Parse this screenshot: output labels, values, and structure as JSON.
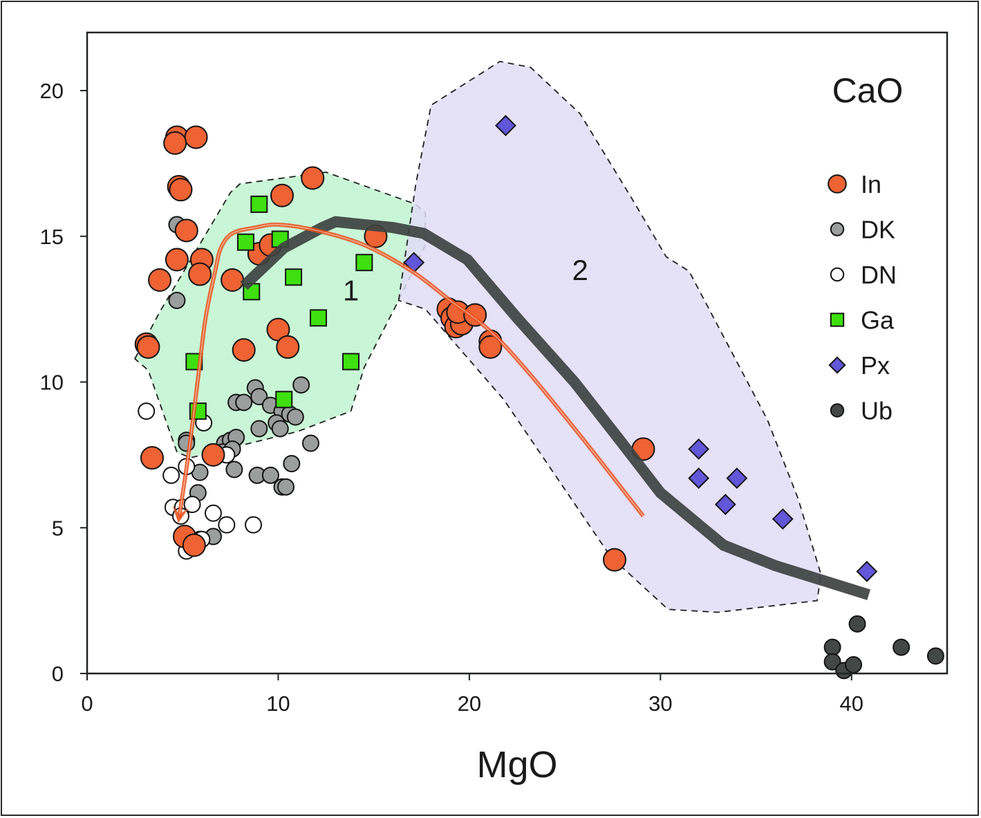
{
  "chart_data": {
    "type": "scatter",
    "title": "CaO",
    "xlabel": "MgO",
    "ylabel": "",
    "xlim": [
      0,
      45
    ],
    "ylim": [
      0,
      22
    ],
    "xticks": [
      0,
      10,
      20,
      30,
      40
    ],
    "yticks": [
      0,
      5,
      10,
      15,
      20
    ],
    "grid": false,
    "legend_position": "top-right",
    "colors": {
      "In": "#ee6233",
      "DK": "#9a9e9d",
      "DN": "#ffffff",
      "Ga": "#3ee00f",
      "Px": "#6256d9",
      "Ub": "#434746",
      "region1_fill": "#bff4cf",
      "region2_fill": "#e0dcf6",
      "trend_gray": "#3d4241",
      "trend_orange": "#ea5420"
    },
    "series": [
      {
        "name": "In",
        "marker": "circle",
        "points": [
          [
            4.7,
            18.4
          ],
          [
            5.7,
            18.4
          ],
          [
            4.6,
            18.2
          ],
          [
            4.8,
            16.7
          ],
          [
            4.9,
            16.6
          ],
          [
            5.2,
            15.2
          ],
          [
            4.7,
            14.2
          ],
          [
            6.0,
            14.2
          ],
          [
            5.9,
            13.7
          ],
          [
            3.8,
            13.5
          ],
          [
            7.6,
            13.5
          ],
          [
            3.1,
            11.3
          ],
          [
            3.2,
            11.2
          ],
          [
            10.2,
            16.4
          ],
          [
            11.8,
            17.0
          ],
          [
            9.0,
            14.4
          ],
          [
            9.6,
            14.7
          ],
          [
            15.1,
            15.0
          ],
          [
            8.2,
            11.1
          ],
          [
            10.0,
            11.8
          ],
          [
            10.5,
            11.2
          ],
          [
            3.4,
            7.4
          ],
          [
            6.6,
            7.5
          ],
          [
            5.1,
            4.7
          ],
          [
            5.6,
            4.4
          ],
          [
            18.9,
            12.5
          ],
          [
            19.1,
            12.2
          ],
          [
            19.3,
            11.9
          ],
          [
            19.6,
            12.0
          ],
          [
            19.4,
            12.4
          ],
          [
            20.3,
            12.3
          ],
          [
            21.1,
            11.4
          ],
          [
            21.1,
            11.2
          ],
          [
            29.1,
            7.7
          ],
          [
            27.6,
            3.9
          ]
        ]
      },
      {
        "name": "DK",
        "marker": "circle",
        "points": [
          [
            4.7,
            15.4
          ],
          [
            4.7,
            12.8
          ],
          [
            8.8,
            9.8
          ],
          [
            7.8,
            9.3
          ],
          [
            8.2,
            9.3
          ],
          [
            9.0,
            9.5
          ],
          [
            9.6,
            9.2
          ],
          [
            10.2,
            9.0
          ],
          [
            10.6,
            8.9
          ],
          [
            11.2,
            9.9
          ],
          [
            10.9,
            8.8
          ],
          [
            9.0,
            8.4
          ],
          [
            9.9,
            8.6
          ],
          [
            10.1,
            8.4
          ],
          [
            5.2,
            8.0
          ],
          [
            5.2,
            7.9
          ],
          [
            7.2,
            7.9
          ],
          [
            7.5,
            8.0
          ],
          [
            7.8,
            8.1
          ],
          [
            7.1,
            7.6
          ],
          [
            7.6,
            7.7
          ],
          [
            7.7,
            7.0
          ],
          [
            11.7,
            7.9
          ],
          [
            5.9,
            6.9
          ],
          [
            8.9,
            6.8
          ],
          [
            9.6,
            6.8
          ],
          [
            10.2,
            6.4
          ],
          [
            10.4,
            6.4
          ],
          [
            10.7,
            7.2
          ],
          [
            5.8,
            6.2
          ],
          [
            6.6,
            4.7
          ],
          [
            5.9,
            4.6
          ]
        ]
      },
      {
        "name": "DN",
        "marker": "circle",
        "points": [
          [
            3.1,
            9.0
          ],
          [
            6.1,
            8.6
          ],
          [
            5.2,
            7.1
          ],
          [
            4.4,
            6.8
          ],
          [
            7.3,
            7.5
          ],
          [
            4.5,
            5.7
          ],
          [
            5.0,
            5.7
          ],
          [
            5.5,
            5.8
          ],
          [
            4.9,
            5.4
          ],
          [
            6.6,
            5.5
          ],
          [
            7.3,
            5.1
          ],
          [
            8.7,
            5.1
          ],
          [
            6.0,
            4.6
          ],
          [
            5.2,
            4.2
          ]
        ]
      },
      {
        "name": "Ga",
        "marker": "square",
        "points": [
          [
            9.0,
            16.1
          ],
          [
            8.3,
            14.8
          ],
          [
            10.1,
            14.9
          ],
          [
            8.6,
            13.1
          ],
          [
            10.8,
            13.6
          ],
          [
            14.5,
            14.1
          ],
          [
            12.1,
            12.2
          ],
          [
            13.8,
            10.7
          ],
          [
            5.6,
            10.7
          ],
          [
            5.8,
            9.0
          ],
          [
            10.3,
            9.4
          ]
        ]
      },
      {
        "name": "Px",
        "marker": "diamond",
        "points": [
          [
            21.9,
            18.8
          ],
          [
            17.1,
            14.1
          ],
          [
            32.0,
            7.7
          ],
          [
            32.0,
            6.7
          ],
          [
            34.0,
            6.7
          ],
          [
            33.4,
            5.8
          ],
          [
            36.4,
            5.3
          ],
          [
            40.8,
            3.5
          ]
        ]
      },
      {
        "name": "Ub",
        "marker": "circle",
        "points": [
          [
            40.3,
            1.7
          ],
          [
            39.0,
            0.9
          ],
          [
            39.0,
            0.4
          ],
          [
            39.6,
            0.1
          ],
          [
            40.1,
            0.3
          ],
          [
            42.6,
            0.9
          ],
          [
            44.4,
            0.6
          ]
        ]
      }
    ],
    "regions": [
      {
        "label": "1",
        "label_at": [
          13.8,
          12.8
        ],
        "polygon": [
          [
            2.5,
            10.8
          ],
          [
            3.8,
            12.4
          ],
          [
            7.5,
            16.5
          ],
          [
            8.0,
            16.8
          ],
          [
            12.5,
            17.2
          ],
          [
            17.2,
            16.1
          ],
          [
            17.7,
            15.8
          ],
          [
            17.7,
            14.7
          ],
          [
            16.3,
            12.8
          ],
          [
            14.5,
            10.5
          ],
          [
            13.8,
            9.0
          ],
          [
            11.0,
            8.3
          ],
          [
            5.4,
            7.4
          ],
          [
            4.7,
            7.6
          ],
          [
            4.0,
            8.9
          ],
          [
            3.2,
            10.4
          ]
        ]
      },
      {
        "label": "2",
        "label_at": [
          25.8,
          13.5
        ],
        "polygon": [
          [
            16.3,
            12.8
          ],
          [
            17.2,
            16.8
          ],
          [
            18.0,
            19.5
          ],
          [
            21.6,
            21.0
          ],
          [
            23.2,
            20.8
          ],
          [
            25.8,
            19.2
          ],
          [
            28.5,
            16.3
          ],
          [
            30.3,
            14.3
          ],
          [
            31.5,
            13.8
          ],
          [
            35.6,
            8.7
          ],
          [
            37.2,
            6.0
          ],
          [
            38.4,
            3.4
          ],
          [
            38.2,
            2.5
          ],
          [
            33.0,
            2.1
          ],
          [
            30.4,
            2.2
          ],
          [
            27.4,
            4.0
          ],
          [
            21.8,
            9.4
          ],
          [
            17.7,
            12.5
          ]
        ]
      }
    ],
    "trend_lines": [
      {
        "name": "gray-trend",
        "points": [
          [
            8.2,
            13.3
          ],
          [
            10.3,
            14.6
          ],
          [
            12.3,
            15.3
          ],
          [
            13.0,
            15.5
          ],
          [
            16.0,
            15.3
          ],
          [
            17.6,
            15.1
          ],
          [
            19.9,
            14.2
          ],
          [
            22.5,
            12.2
          ],
          [
            25.5,
            10.0
          ],
          [
            28.0,
            7.9
          ],
          [
            30.0,
            6.2
          ],
          [
            33.3,
            4.4
          ],
          [
            36.0,
            3.7
          ],
          [
            40.9,
            2.7
          ]
        ]
      },
      {
        "name": "orange-trend-arrow",
        "points": [
          [
            29.1,
            5.4
          ],
          [
            26.0,
            8.0
          ],
          [
            23.0,
            10.4
          ],
          [
            21.0,
            11.8
          ],
          [
            19.0,
            12.8
          ],
          [
            17.0,
            13.8
          ],
          [
            14.5,
            14.7
          ],
          [
            12.0,
            15.2
          ],
          [
            10.0,
            15.4
          ],
          [
            8.8,
            15.3
          ],
          [
            7.6,
            15.1
          ],
          [
            7.0,
            14.6
          ],
          [
            6.7,
            13.8
          ],
          [
            6.2,
            12.2
          ],
          [
            5.8,
            10.1
          ],
          [
            5.3,
            7.5
          ],
          [
            4.8,
            5.3
          ]
        ]
      }
    ],
    "legend": [
      {
        "label": "In",
        "marker": "circle"
      },
      {
        "label": "DK",
        "marker": "circle"
      },
      {
        "label": "DN",
        "marker": "circle"
      },
      {
        "label": "Ga",
        "marker": "square"
      },
      {
        "label": "Px",
        "marker": "diamond"
      },
      {
        "label": "Ub",
        "marker": "circle"
      }
    ]
  }
}
